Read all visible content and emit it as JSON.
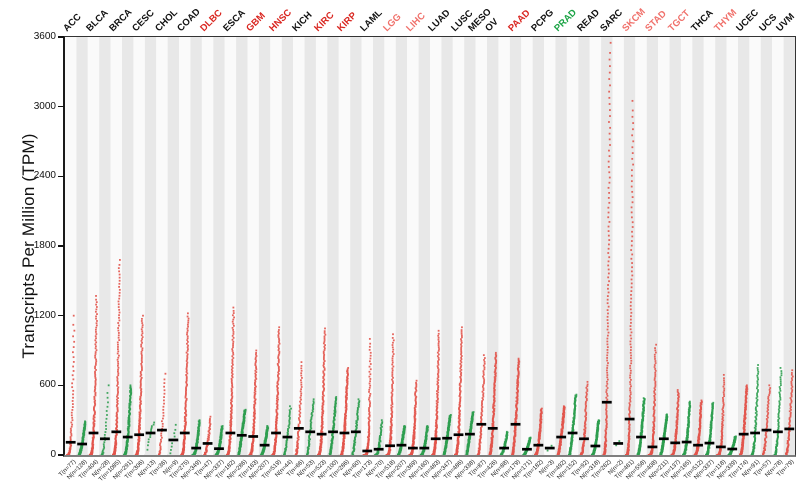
{
  "figure": {
    "y_axis_title": "Transcripts Per Million (TPM)"
  },
  "colors": {
    "tumor_dot": "#e2554c",
    "normal_dot": "#2f9e50",
    "median_bar": "#000000",
    "stripe_light": "#fafafa",
    "stripe_gray": "#e8e8e8",
    "axis_bottom": "#7f7f7f",
    "label_black": "#111111",
    "label_red": "#d9251f",
    "label_light_red": "#f0706a",
    "label_green": "#1ba345"
  },
  "chart_data": {
    "type": "scatter",
    "title": "",
    "xlabel": "",
    "ylabel": "Transcripts Per Million (TPM)",
    "ylim": [
      0,
      3600
    ],
    "yticks": [
      0,
      600,
      1200,
      1800,
      2400,
      3000,
      3600
    ],
    "grid": false,
    "legend_position": "none",
    "description": "Per cancer type: tumor (T, red) and normal (N, green) sample cohorts; each dot one sample, sorted ascending within column; black bar = median TPM",
    "cancers": [
      {
        "code": "ACC",
        "label_color": "#111111",
        "tumor": {
          "label": "T(n=77)",
          "n": 77,
          "median": 110,
          "max": 1200
        },
        "normal": {
          "label": "N(n=128)",
          "n": 128,
          "median": 95,
          "max": 290
        }
      },
      {
        "code": "BLCA",
        "label_color": "#111111",
        "tumor": {
          "label": "T(n=404)",
          "n": 404,
          "median": 190,
          "max": 1370
        },
        "normal": {
          "label": "N(n=28)",
          "n": 28,
          "median": 140,
          "max": 600
        }
      },
      {
        "code": "BRCA",
        "label_color": "#111111",
        "tumor": {
          "label": "T(n=1085)",
          "n": 1085,
          "median": 200,
          "max": 1680
        },
        "normal": {
          "label": "N(n=291)",
          "n": 291,
          "median": 155,
          "max": 600
        }
      },
      {
        "code": "CESC",
        "label_color": "#111111",
        "tumor": {
          "label": "T(n=306)",
          "n": 306,
          "median": 175,
          "max": 1200
        },
        "normal": {
          "label": "N(n=13)",
          "n": 13,
          "median": 190,
          "max": 280
        }
      },
      {
        "code": "CHOL",
        "label_color": "#111111",
        "tumor": {
          "label": "T(n=36)",
          "n": 36,
          "median": 215,
          "max": 700
        },
        "normal": {
          "label": "N(n=9)",
          "n": 9,
          "median": 130,
          "max": 260
        }
      },
      {
        "code": "COAD",
        "label_color": "#111111",
        "tumor": {
          "label": "T(n=275)",
          "n": 275,
          "median": 190,
          "max": 1220
        },
        "normal": {
          "label": "N(n=349)",
          "n": 349,
          "median": 60,
          "max": 300
        }
      },
      {
        "code": "DLBC",
        "label_color": "#d9251f",
        "tumor": {
          "label": "T(n=47)",
          "n": 47,
          "median": 100,
          "max": 330
        },
        "normal": {
          "label": "N(n=337)",
          "n": 337,
          "median": 55,
          "max": 250
        }
      },
      {
        "code": "ESCA",
        "label_color": "#111111",
        "tumor": {
          "label": "T(n=182)",
          "n": 182,
          "median": 190,
          "max": 1270
        },
        "normal": {
          "label": "N(n=286)",
          "n": 286,
          "median": 170,
          "max": 390
        }
      },
      {
        "code": "GBM",
        "label_color": "#d9251f",
        "tumor": {
          "label": "T(n=163)",
          "n": 163,
          "median": 160,
          "max": 900
        },
        "normal": {
          "label": "N(n=207)",
          "n": 207,
          "median": 85,
          "max": 250
        }
      },
      {
        "code": "HNSC",
        "label_color": "#d9251f",
        "tumor": {
          "label": "T(n=519)",
          "n": 519,
          "median": 190,
          "max": 1100
        },
        "normal": {
          "label": "N(n=44)",
          "n": 44,
          "median": 155,
          "max": 420
        }
      },
      {
        "code": "KICH",
        "label_color": "#111111",
        "tumor": {
          "label": "T(n=66)",
          "n": 66,
          "median": 230,
          "max": 800
        },
        "normal": {
          "label": "N(n=53)",
          "n": 53,
          "median": 200,
          "max": 480
        }
      },
      {
        "code": "KIRC",
        "label_color": "#d9251f",
        "tumor": {
          "label": "T(n=523)",
          "n": 523,
          "median": 180,
          "max": 1090
        },
        "normal": {
          "label": "N(n=100)",
          "n": 100,
          "median": 200,
          "max": 500
        }
      },
      {
        "code": "KIRP",
        "label_color": "#d9251f",
        "tumor": {
          "label": "T(n=286)",
          "n": 286,
          "median": 190,
          "max": 750
        },
        "normal": {
          "label": "N(n=60)",
          "n": 60,
          "median": 200,
          "max": 480
        }
      },
      {
        "code": "LAML",
        "label_color": "#111111",
        "tumor": {
          "label": "T(n=173)",
          "n": 173,
          "median": 35,
          "max": 1000
        },
        "normal": {
          "label": "N(n=70)",
          "n": 70,
          "median": 50,
          "max": 300
        }
      },
      {
        "code": "LGG",
        "label_color": "#f0706a",
        "tumor": {
          "label": "T(n=518)",
          "n": 518,
          "median": 80,
          "max": 1040
        },
        "normal": {
          "label": "N(n=207)",
          "n": 207,
          "median": 85,
          "max": 250
        }
      },
      {
        "code": "LIHC",
        "label_color": "#f0706a",
        "tumor": {
          "label": "T(n=369)",
          "n": 369,
          "median": 60,
          "max": 640
        },
        "normal": {
          "label": "N(n=160)",
          "n": 160,
          "median": 60,
          "max": 250
        }
      },
      {
        "code": "LUAD",
        "label_color": "#111111",
        "tumor": {
          "label": "T(n=483)",
          "n": 483,
          "median": 140,
          "max": 1070
        },
        "normal": {
          "label": "N(n=347)",
          "n": 347,
          "median": 145,
          "max": 345
        }
      },
      {
        "code": "LUSC",
        "label_color": "#111111",
        "tumor": {
          "label": "T(n=486)",
          "n": 486,
          "median": 175,
          "max": 1100
        },
        "normal": {
          "label": "N(n=338)",
          "n": 338,
          "median": 180,
          "max": 370
        }
      },
      {
        "code": "MESO",
        "label_color": "#111111",
        "tumor": {
          "label": "T(n=87)",
          "n": 87,
          "median": 265,
          "max": 860
        },
        "normal": null
      },
      {
        "code": "OV",
        "label_color": "#111111",
        "tumor": {
          "label": "T(n=426)",
          "n": 426,
          "median": 230,
          "max": 880
        },
        "normal": {
          "label": "N(n=88)",
          "n": 88,
          "median": 60,
          "max": 200
        }
      },
      {
        "code": "PAAD",
        "label_color": "#d9251f",
        "tumor": {
          "label": "T(n=179)",
          "n": 179,
          "median": 265,
          "max": 830
        },
        "normal": {
          "label": "N(n=171)",
          "n": 171,
          "median": 50,
          "max": 150
        }
      },
      {
        "code": "PCPG",
        "label_color": "#111111",
        "tumor": {
          "label": "T(n=182)",
          "n": 182,
          "median": 85,
          "max": 400
        },
        "normal": {
          "label": "N(n=3)",
          "n": 3,
          "median": 60,
          "max": 80
        }
      },
      {
        "code": "PRAD",
        "label_color": "#1ba345",
        "tumor": {
          "label": "T(n=492)",
          "n": 492,
          "median": 155,
          "max": 420
        },
        "normal": {
          "label": "N(n=152)",
          "n": 152,
          "median": 190,
          "max": 520
        }
      },
      {
        "code": "READ",
        "label_color": "#111111",
        "tumor": {
          "label": "T(n=92)",
          "n": 92,
          "median": 140,
          "max": 630
        },
        "normal": {
          "label": "N(n=318)",
          "n": 318,
          "median": 78,
          "max": 300
        }
      },
      {
        "code": "SARC",
        "label_color": "#111111",
        "tumor": {
          "label": "T(n=262)",
          "n": 262,
          "median": 455,
          "max": 3550
        },
        "normal": {
          "label": "N(n=2)",
          "n": 2,
          "median": 100,
          "max": 120
        }
      },
      {
        "code": "SKCM",
        "label_color": "#f0706a",
        "tumor": {
          "label": "T(n=461)",
          "n": 461,
          "median": 310,
          "max": 3050
        },
        "normal": {
          "label": "N(n=558)",
          "n": 558,
          "median": 155,
          "max": 490
        }
      },
      {
        "code": "STAD",
        "label_color": "#f0706a",
        "tumor": {
          "label": "T(n=408)",
          "n": 408,
          "median": 70,
          "max": 950
        },
        "normal": {
          "label": "N(n=211)",
          "n": 211,
          "median": 140,
          "max": 350
        }
      },
      {
        "code": "TGCT",
        "label_color": "#f0706a",
        "tumor": {
          "label": "T(n=137)",
          "n": 137,
          "median": 105,
          "max": 560
        },
        "normal": {
          "label": "N(n=165)",
          "n": 165,
          "median": 112,
          "max": 460
        }
      },
      {
        "code": "THCA",
        "label_color": "#111111",
        "tumor": {
          "label": "T(n=512)",
          "n": 512,
          "median": 85,
          "max": 470
        },
        "normal": {
          "label": "N(n=337)",
          "n": 337,
          "median": 103,
          "max": 450
        }
      },
      {
        "code": "THYM",
        "label_color": "#f0706a",
        "tumor": {
          "label": "T(n=118)",
          "n": 118,
          "median": 70,
          "max": 690
        },
        "normal": {
          "label": "N(n=339)",
          "n": 339,
          "median": 52,
          "max": 160
        }
      },
      {
        "code": "UCEC",
        "label_color": "#111111",
        "tumor": {
          "label": "T(n=174)",
          "n": 174,
          "median": 180,
          "max": 600
        },
        "normal": {
          "label": "N(n=91)",
          "n": 91,
          "median": 190,
          "max": 775
        }
      },
      {
        "code": "UCS",
        "label_color": "#111111",
        "tumor": {
          "label": "T(n=57)",
          "n": 57,
          "median": 215,
          "max": 600
        },
        "normal": {
          "label": "N(n=78)",
          "n": 78,
          "median": 200,
          "max": 750
        }
      },
      {
        "code": "UVM",
        "label_color": "#111111",
        "tumor": {
          "label": "T(n=79)",
          "n": 79,
          "median": 225,
          "max": 730
        },
        "normal": null
      }
    ]
  }
}
